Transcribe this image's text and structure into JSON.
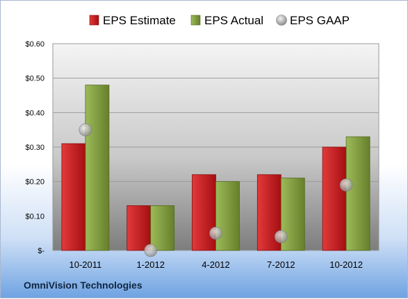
{
  "footer": {
    "company": "OmniVision Technologies"
  },
  "chart_data": {
    "type": "bar",
    "title": "",
    "xlabel": "",
    "ylabel": "",
    "categories": [
      "10-2011",
      "1-2012",
      "4-2012",
      "7-2012",
      "10-2012"
    ],
    "ylim": [
      0,
      0.6
    ],
    "y_ticks": [
      0,
      0.1,
      0.2,
      0.3,
      0.4,
      0.5,
      0.6
    ],
    "y_tick_labels": [
      "$-",
      "$0.10",
      "$0.20",
      "$0.30",
      "$0.40",
      "$0.50",
      "$0.60"
    ],
    "grid": true,
    "legend_position": "top",
    "series": [
      {
        "name": "EPS Estimate",
        "kind": "bar",
        "color": "#c0161c",
        "values": [
          0.31,
          0.13,
          0.22,
          0.22,
          0.3
        ]
      },
      {
        "name": "EPS Actual",
        "kind": "bar",
        "color": "#7f9a3c",
        "values": [
          0.48,
          0.13,
          0.2,
          0.21,
          0.33
        ]
      },
      {
        "name": "EPS GAAP",
        "kind": "marker",
        "color": "#b5b5b5",
        "values": [
          0.35,
          0.0,
          0.05,
          0.04,
          0.19
        ]
      }
    ]
  }
}
